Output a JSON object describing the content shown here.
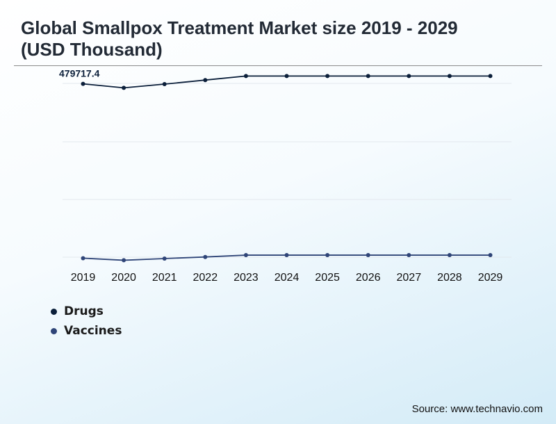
{
  "title": "Global Smallpox Treatment Market size 2019 - 2029 (USD Thousand)",
  "source": "Source: www.technavio.com",
  "colors": {
    "drugs": "#0b1f3a",
    "vaccines": "#2f4578",
    "grid": "#e3e8ee"
  },
  "chart_data": {
    "type": "line",
    "title": "Global Smallpox Treatment Market size 2019 - 2029 (USD Thousand)",
    "x": [
      "2019",
      "2020",
      "2021",
      "2022",
      "2023",
      "2024",
      "2025",
      "2026",
      "2027",
      "2028",
      "2029"
    ],
    "ylim": [
      0,
      530000
    ],
    "grid": true,
    "y_axis_visible": false,
    "legend_position": "bottom-left",
    "series": [
      {
        "name": "Drugs",
        "color": "#0b1f3a",
        "values": [
          479717.4,
          469000,
          479000,
          490000,
          501000,
          501000,
          501000,
          501000,
          501000,
          501000,
          501000
        ],
        "data_label": "479717.4"
      },
      {
        "name": "Vaccines",
        "color": "#2f4578",
        "values": [
          6700,
          1100,
          5700,
          10000,
          15000,
          15000,
          15000,
          15000,
          15000,
          15000,
          15000
        ]
      }
    ]
  }
}
